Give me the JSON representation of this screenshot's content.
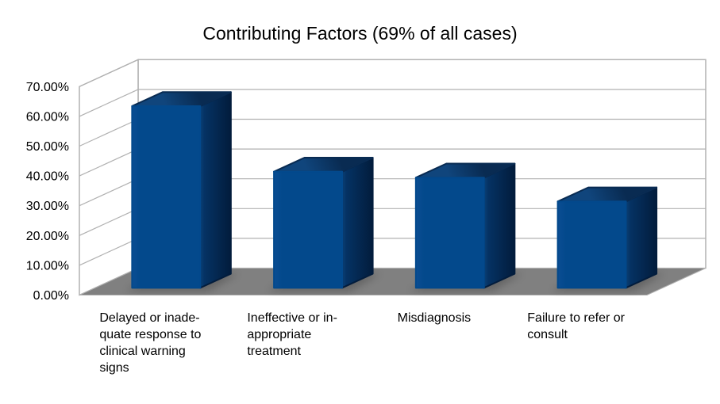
{
  "page": {
    "background": "#ffffff"
  },
  "chart_data": {
    "type": "bar",
    "style": "3d-column",
    "title": "Contributing Factors (69% of all cases)",
    "categories": [
      "Delayed or inadequate response to clinical warning signs",
      "Ineffective or inappropriate treatment",
      "Misdiagnosis",
      "Failure to refer or consult"
    ],
    "category_display_lines": [
      [
        "Delayed or inade-",
        "quate response to",
        "clinical warning",
        "signs"
      ],
      [
        "Ineffective or in-",
        "appropriate",
        "treatment"
      ],
      [
        "Misdiagnosis"
      ],
      [
        "Failure to refer or",
        "consult"
      ]
    ],
    "values": [
      61,
      39,
      37,
      29
    ],
    "unit": "%",
    "ylim": [
      0,
      70
    ],
    "ytick_step": 10,
    "ytick_labels": [
      "0.00%",
      "10.00%",
      "20.00%",
      "30.00%",
      "40.00%",
      "50.00%",
      "60.00%",
      "70.00%"
    ],
    "grid": true,
    "legend": "none",
    "colors": {
      "bar_front": "#03498c",
      "bar_front_light": "#0b4d93",
      "bar_top_front": "#10457c",
      "bar_top_back": "#092b52",
      "bar_side_front": "#0a4076",
      "bar_side_mid": "#053263",
      "bar_side_back": "#021c3c",
      "floor": "#808080",
      "gridline": "#b1b1b1",
      "wall_border": "#a6a6a6",
      "wall_fill": "#ffffff",
      "text": "#000000",
      "background": "#ffffff"
    }
  }
}
